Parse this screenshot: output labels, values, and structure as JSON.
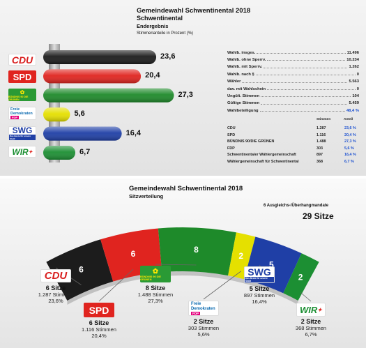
{
  "upper": {
    "title": "Gemeindewahl Schwentinental 2018",
    "subtitle": "Schwentinental",
    "result_type": "Endergebnis",
    "unit_note": "Stimmenanteile in Prozent (%)"
  },
  "stats": {
    "rows": [
      {
        "label": "Wahlb. insges.",
        "value": "11.496"
      },
      {
        "label": "Wahlb. ohne Sperrv.",
        "value": "10.234"
      },
      {
        "label": "Wahlb. mit Sperrv.",
        "value": "1.262"
      },
      {
        "label": "Wahlb. nach §",
        "value": "0"
      },
      {
        "label": "Wähler",
        "value": "5.563"
      },
      {
        "label": "dav. mit Wahlschein",
        "value": "0"
      },
      {
        "label": "Ungült. Stimmen",
        "value": "104"
      },
      {
        "label": "Gültige Stimmen",
        "value": "5.459"
      },
      {
        "label": "Wahlbeteiligung",
        "value": "48,4 %"
      }
    ],
    "head_votes": "Stimmen",
    "head_share": "Anteil",
    "parties": [
      {
        "label": "CDU",
        "votes": "1.287",
        "share": "23,6 %"
      },
      {
        "label": "SPD",
        "votes": "1.116",
        "share": "20,4 %"
      },
      {
        "label": "BÜNDNIS 90/DIE GRÜNEN",
        "votes": "1.488",
        "share": "27,3 %"
      },
      {
        "label": "FDP",
        "votes": "303",
        "share": "5,6 %"
      },
      {
        "label": "Schwentinentaler Wählergemeinschaft",
        "votes": "897",
        "share": "16,4 %"
      },
      {
        "label": "Wählergemeinschaft für Schwentinental",
        "votes": "368",
        "share": "6,7 %"
      }
    ]
  },
  "logos": {
    "cdu": "CDU",
    "spd": "SPD",
    "gruene": "BÜNDNIS 90 DIE GRÜNEN",
    "fdp_1": "Freie",
    "fdp_2": "Demokraten",
    "fdp_3": "FDP",
    "swg": "SWG",
    "swg_sub": "Das Beste für unsere Stadt",
    "wir": "WIR"
  },
  "lower": {
    "title": "Gemeindewahl Schwentinental 2018",
    "subtitle": "Sitzverteilung",
    "note": "6 Ausgleichs-/Überhangmandate",
    "total": "29 Sitze"
  },
  "colors": {
    "cdu": "#1c1c1c",
    "spd": "#e0241f",
    "gruene": "#1e8a2a",
    "fdp": "#e5e000",
    "swg": "#1f3fa6",
    "wir": "#1c8f33"
  },
  "chart_data": [
    {
      "type": "bar",
      "categories": [
        "CDU",
        "SPD",
        "BÜNDNIS 90/DIE GRÜNEN",
        "FDP",
        "SWG",
        "WIR"
      ],
      "values": [
        23.6,
        20.4,
        27.3,
        5.6,
        16.4,
        6.7
      ],
      "labels": [
        "23,6",
        "20,4",
        "27,3",
        "5,6",
        "16,4",
        "6,7"
      ],
      "orientation": "horizontal",
      "xlim": [
        0,
        30
      ]
    },
    {
      "type": "pie",
      "variant": "parliament-arc",
      "categories": [
        "CDU",
        "SPD",
        "BÜNDNIS 90/DIE GRÜNEN",
        "FDP",
        "SWG",
        "WIR"
      ],
      "values": [
        6,
        6,
        8,
        2,
        5,
        2
      ],
      "items": [
        {
          "seats": "6 Sitze",
          "votes": "1.287 Stimmen",
          "share": "23,6%"
        },
        {
          "seats": "6 Sitze",
          "votes": "1.116 Stimmen",
          "share": "20,4%"
        },
        {
          "seats": "8 Sitze",
          "votes": "1.488 Stimmen",
          "share": "27,3%"
        },
        {
          "seats": "2 Sitze",
          "votes": "303 Stimmen",
          "share": "5,6%"
        },
        {
          "seats": "5 Sitze",
          "votes": "897 Stimmen",
          "share": "16,4%"
        },
        {
          "seats": "2 Sitze",
          "votes": "368 Stimmen",
          "share": "6,7%"
        }
      ]
    }
  ]
}
